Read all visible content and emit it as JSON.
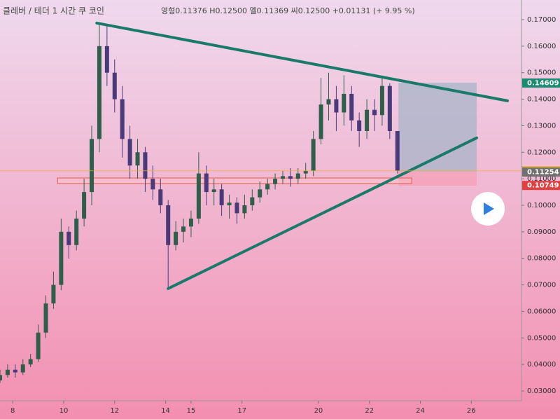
{
  "chart_data": {
    "type": "candlestick",
    "header": {
      "symbol": "클레버 / 테더  1 시간  쿠 코인",
      "ohlc": "영형0.11376 H0.12500 엘0.11369 씨0.12500 +0.01131 (+ 9.95 %)"
    },
    "x": [
      7.5,
      7.8,
      8.1,
      8.4,
      8.7,
      9.0,
      9.3,
      9.6,
      9.9,
      10.2,
      10.5,
      10.8,
      11.1,
      11.4,
      11.7,
      12.0,
      12.3,
      12.6,
      12.9,
      13.2,
      13.5,
      13.8,
      14.1,
      14.4,
      14.7,
      15.0,
      15.3,
      15.6,
      15.9,
      16.2,
      16.5,
      16.8,
      17.1,
      17.4,
      17.7,
      18.0,
      18.3,
      18.6,
      18.9,
      19.2,
      19.5,
      19.8,
      20.1,
      20.4,
      20.7,
      21.0,
      21.3,
      21.6,
      21.9,
      22.2,
      22.5,
      22.8,
      23.1
    ],
    "open": [
      0.034,
      0.036,
      0.038,
      0.037,
      0.04,
      0.042,
      0.052,
      0.063,
      0.07,
      0.09,
      0.085,
      0.095,
      0.105,
      0.125,
      0.16,
      0.15,
      0.14,
      0.125,
      0.115,
      0.12,
      0.11,
      0.106,
      0.1,
      0.085,
      0.09,
      0.092,
      0.095,
      0.112,
      0.105,
      0.106,
      0.1,
      0.101,
      0.097,
      0.1,
      0.103,
      0.106,
      0.108,
      0.11,
      0.111,
      0.11,
      0.112,
      0.113,
      0.125,
      0.138,
      0.14,
      0.135,
      0.142,
      0.132,
      0.128,
      0.136,
      0.134,
      0.145,
      0.128
    ],
    "high": [
      0.038,
      0.04,
      0.04,
      0.042,
      0.044,
      0.055,
      0.066,
      0.075,
      0.095,
      0.092,
      0.098,
      0.11,
      0.13,
      0.169,
      0.168,
      0.155,
      0.145,
      0.13,
      0.125,
      0.122,
      0.115,
      0.11,
      0.102,
      0.094,
      0.095,
      0.098,
      0.12,
      0.115,
      0.11,
      0.108,
      0.104,
      0.103,
      0.104,
      0.106,
      0.109,
      0.11,
      0.112,
      0.113,
      0.114,
      0.114,
      0.116,
      0.128,
      0.148,
      0.15,
      0.145,
      0.149,
      0.145,
      0.135,
      0.14,
      0.14,
      0.148,
      0.146,
      0.128
    ],
    "low": [
      0.033,
      0.035,
      0.035,
      0.036,
      0.039,
      0.041,
      0.05,
      0.061,
      0.068,
      0.08,
      0.083,
      0.092,
      0.1,
      0.12,
      0.145,
      0.135,
      0.118,
      0.11,
      0.11,
      0.105,
      0.102,
      0.097,
      0.069,
      0.083,
      0.086,
      0.088,
      0.093,
      0.1,
      0.1,
      0.096,
      0.095,
      0.093,
      0.095,
      0.098,
      0.101,
      0.104,
      0.106,
      0.108,
      0.107,
      0.108,
      0.11,
      0.111,
      0.123,
      0.132,
      0.128,
      0.13,
      0.128,
      0.122,
      0.125,
      0.128,
      0.13,
      0.125,
      0.112
    ],
    "close": [
      0.036,
      0.038,
      0.037,
      0.04,
      0.042,
      0.052,
      0.063,
      0.07,
      0.09,
      0.085,
      0.095,
      0.105,
      0.125,
      0.16,
      0.15,
      0.14,
      0.125,
      0.115,
      0.12,
      0.11,
      0.106,
      0.1,
      0.085,
      0.09,
      0.092,
      0.095,
      0.112,
      0.105,
      0.106,
      0.1,
      0.101,
      0.097,
      0.1,
      0.103,
      0.106,
      0.108,
      0.11,
      0.111,
      0.11,
      0.112,
      0.113,
      0.125,
      0.138,
      0.14,
      0.135,
      0.142,
      0.132,
      0.128,
      0.136,
      0.134,
      0.145,
      0.128,
      0.113
    ],
    "up_color": "#2f5f4a",
    "down_color": "#4a3a7a",
    "xlim": [
      7.5,
      27.97
    ],
    "ylim": [
      0.0263,
      0.1774
    ],
    "xticks": [
      8,
      10,
      12,
      14,
      15,
      17,
      20,
      22,
      24,
      26
    ],
    "yticks": [
      {
        "value": 0.03,
        "label": "0.03000"
      },
      {
        "value": 0.04,
        "label": "0.04000"
      },
      {
        "value": 0.05,
        "label": "0.05000"
      },
      {
        "value": 0.06,
        "label": "0.06000"
      },
      {
        "value": 0.07,
        "label": "0.07000"
      },
      {
        "value": 0.08,
        "label": "0.08000"
      },
      {
        "value": 0.09,
        "label": "0.09000"
      },
      {
        "value": 0.1,
        "label": "0.10000"
      },
      {
        "value": 0.11,
        "label": "0.11000"
      },
      {
        "value": 0.12,
        "label": "0.12000"
      },
      {
        "value": 0.13,
        "label": "0.13000"
      },
      {
        "value": 0.14,
        "label": "0.14000"
      },
      {
        "value": 0.15,
        "label": "0.15000"
      },
      {
        "value": 0.16,
        "label": "0.16000"
      },
      {
        "value": 0.17,
        "label": "0.17000"
      }
    ],
    "trendlines": [
      {
        "x": [
          11.3,
          27.42
        ],
        "y": [
          0.1687,
          0.1394
        ],
        "color": "#1a7a6a"
      },
      {
        "x": [
          14.1,
          26.21
        ],
        "y": [
          0.0686,
          0.1254
        ],
        "color": "#1a7a6a"
      }
    ],
    "boxes": [
      {
        "x": [
          23.14,
          26.21
        ],
        "y": [
          0.1127,
          0.1462
        ],
        "color": "#a8b4c8"
      },
      {
        "x": [
          23.14,
          26.21
        ],
        "y": [
          0.1074,
          0.1127
        ],
        "color": "#f4a0b8"
      },
      {
        "x": [
          9.76,
          23.66
        ],
        "y": [
          0.1082,
          0.1103
        ],
        "color": "#e85a4a"
      }
    ],
    "price_labels": [
      {
        "value": 0.14609,
        "label": "0.14609",
        "color": "#1a8a70"
      },
      {
        "value": 0.113,
        "label": "0.11300",
        "color": "#f0b020"
      },
      {
        "value": 0.11254,
        "label": "0.11254",
        "color": "#707070"
      },
      {
        "value": 0.10749,
        "label": "0.10749",
        "color": "#e04040"
      }
    ]
  }
}
